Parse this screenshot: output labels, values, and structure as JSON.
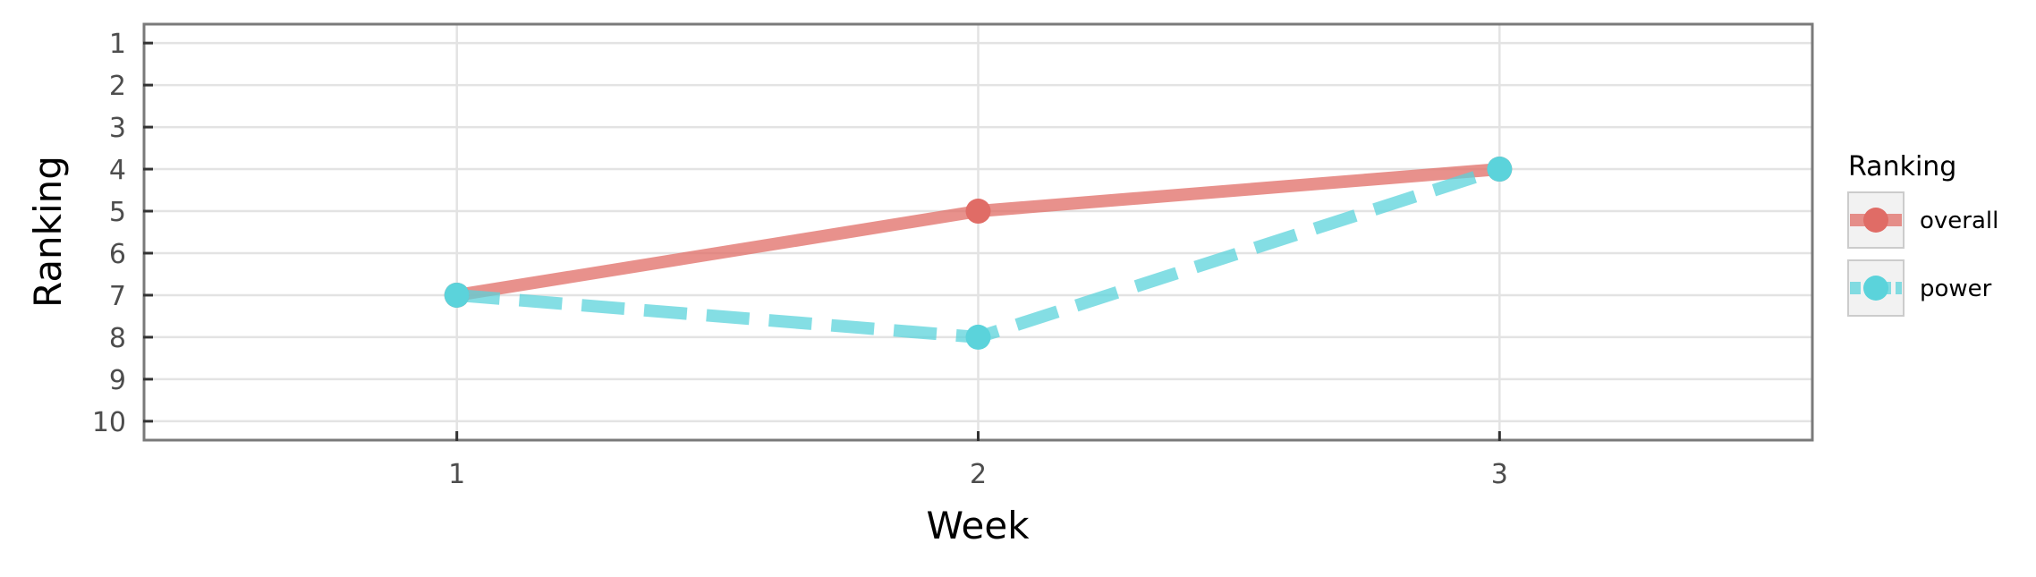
{
  "chart_data": {
    "type": "line",
    "title": "",
    "xlabel": "Week",
    "ylabel": "Ranking",
    "x": [
      1,
      2,
      3
    ],
    "x_ticks": [
      1,
      2,
      3
    ],
    "xlim": [
      0.4,
      3.6
    ],
    "y_ticks": [
      1,
      2,
      3,
      4,
      5,
      6,
      7,
      8,
      9,
      10
    ],
    "ylim": [
      0.55,
      10.45
    ],
    "y_reversed": true,
    "grid": true,
    "legend": {
      "title": "Ranking",
      "placement": "right"
    },
    "series": [
      {
        "name": "overall",
        "values": [
          7,
          5,
          4
        ],
        "color": "#e06c66",
        "line_style": "solid"
      },
      {
        "name": "power",
        "values": [
          7,
          8,
          4
        ],
        "color": "#5bd3db",
        "line_style": "dashed"
      }
    ]
  }
}
